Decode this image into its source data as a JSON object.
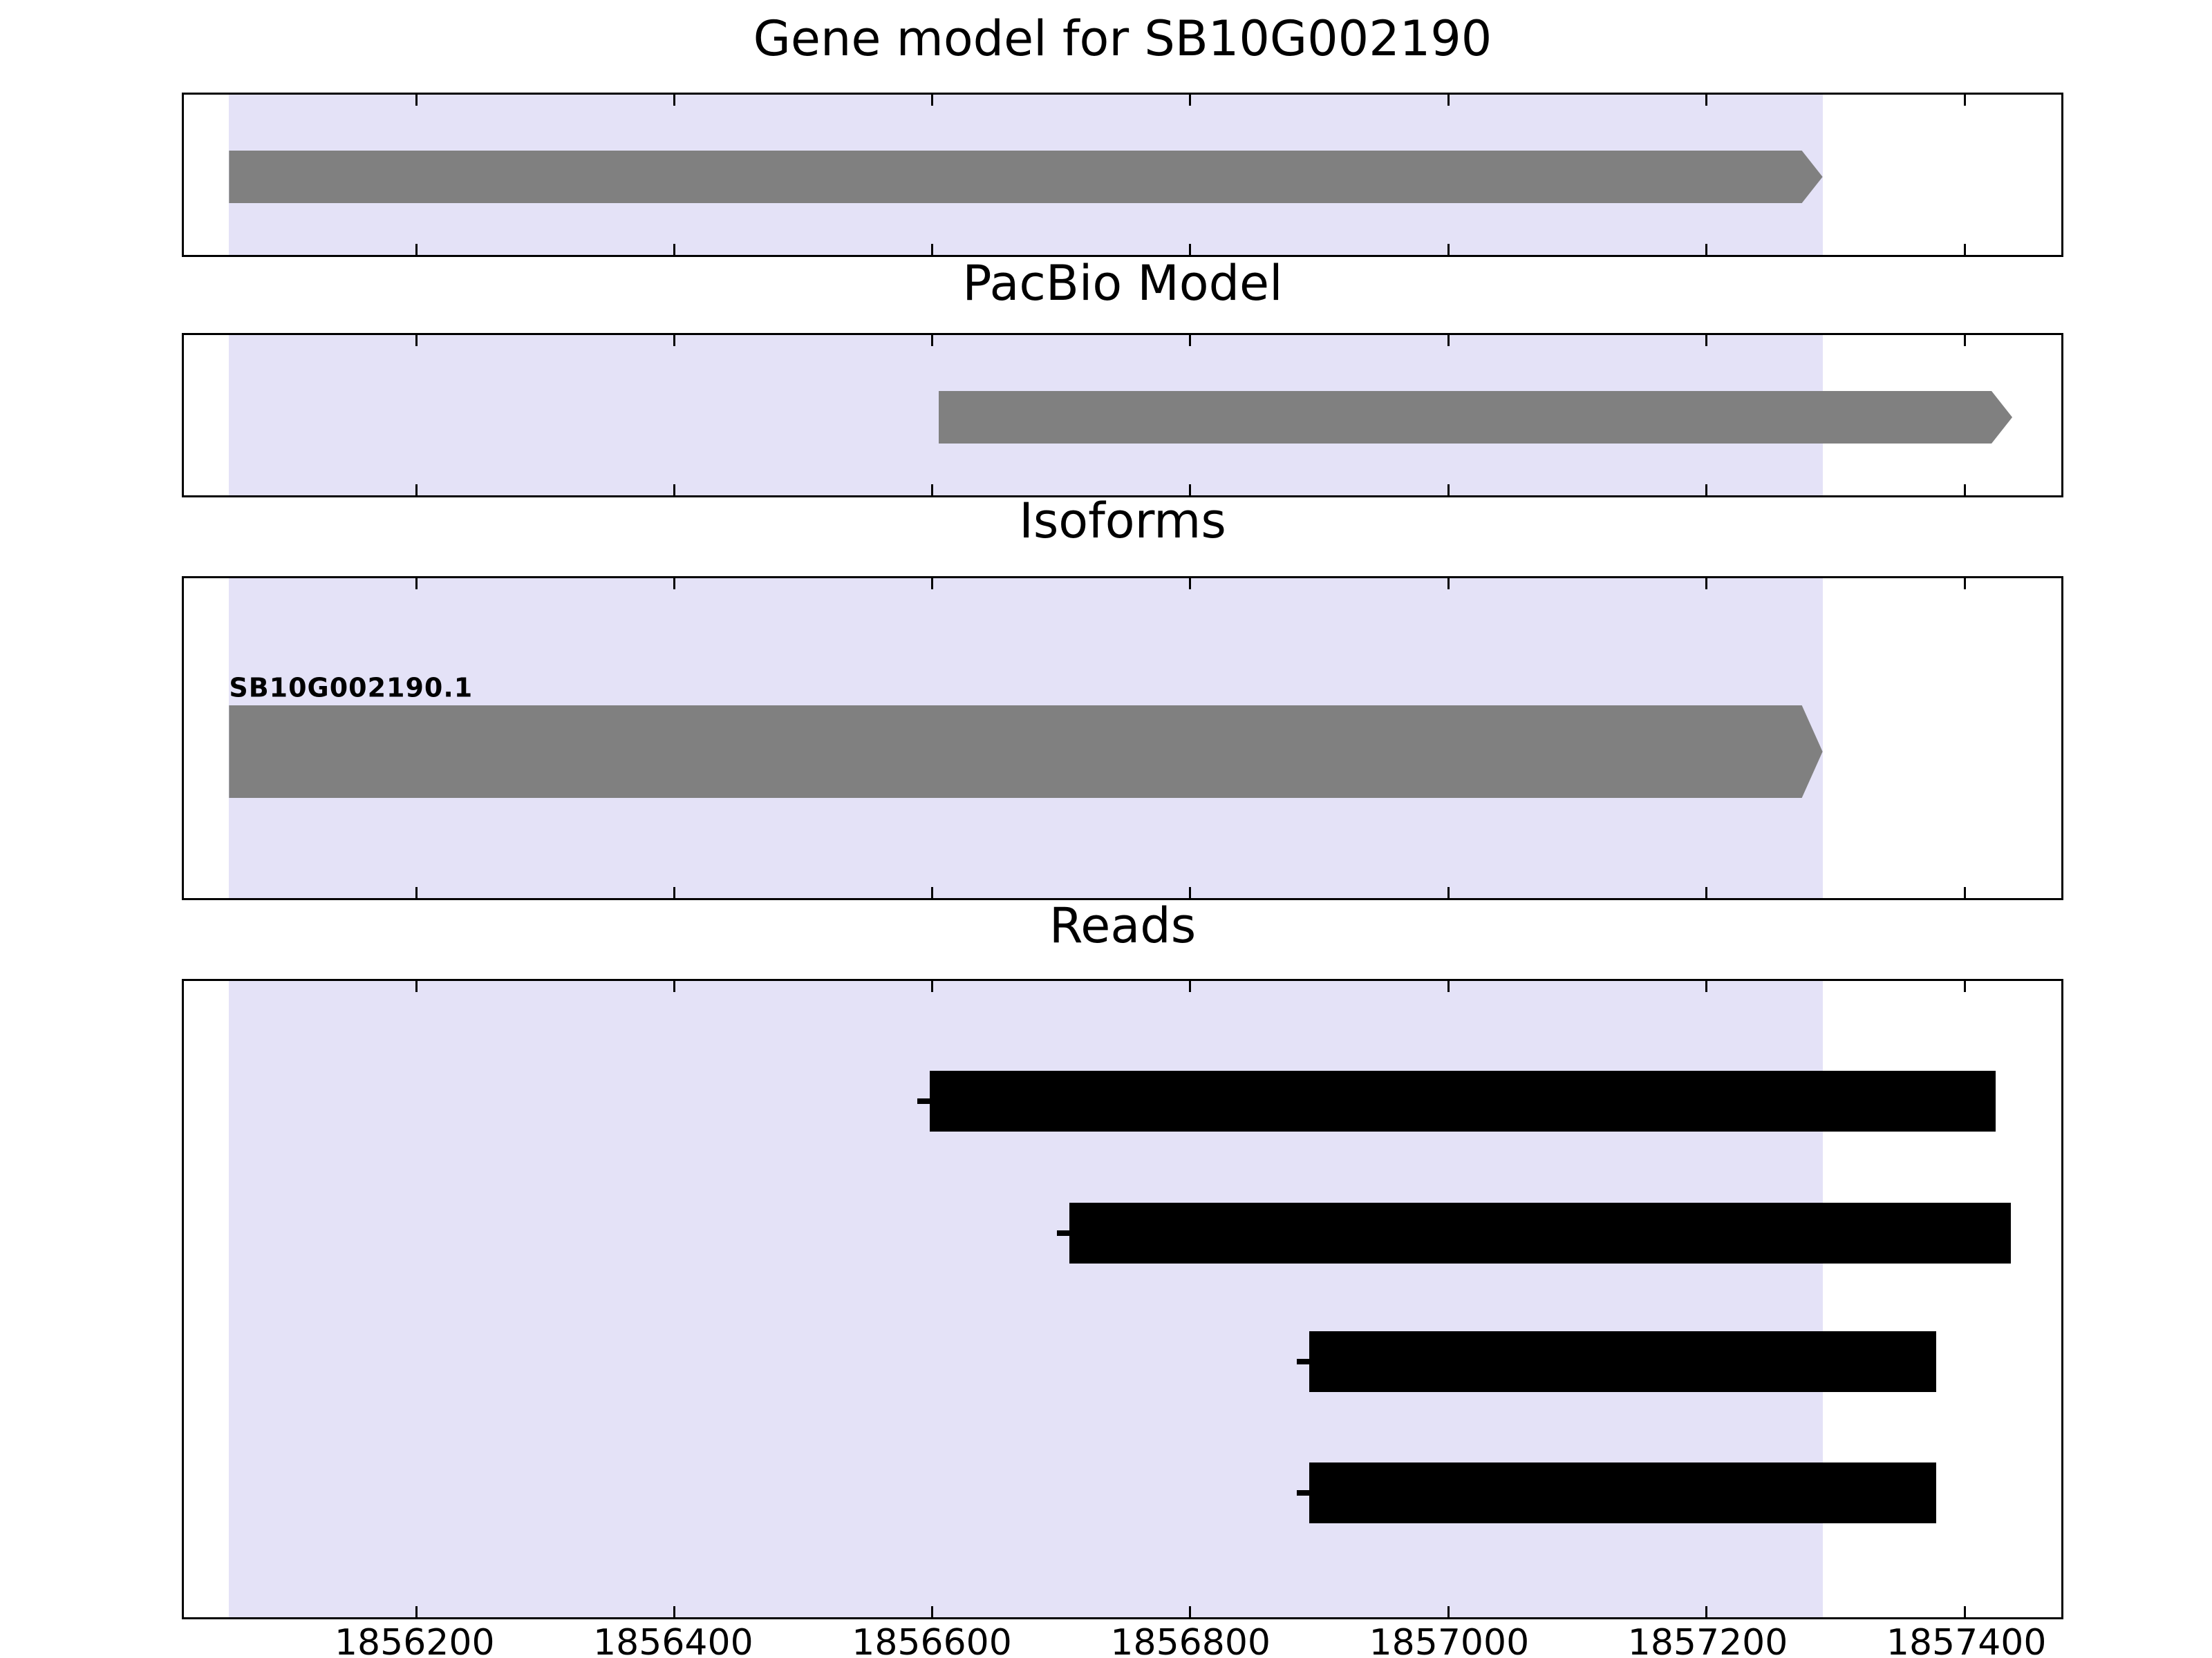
{
  "figure": {
    "background": "#ffffff",
    "text_color": "#000000"
  },
  "chart_data": {
    "type": "bar",
    "title": "Gene model for SB10G002190",
    "xlim": [
      1856020,
      1857475
    ],
    "xticks": [
      1856200,
      1856400,
      1856600,
      1856800,
      1857000,
      1857200,
      1857400
    ],
    "grid": false,
    "legend": false,
    "highlight": {
      "start": 1856055,
      "end": 1857290,
      "color": "#e4e2f7"
    },
    "panels": [
      {
        "title": "Gene model for SB10G002190",
        "track": "gene-model",
        "features": [
          {
            "start": 1856055,
            "end": 1857290,
            "strand": "+",
            "shape": "arrow",
            "color": "#808080"
          }
        ]
      },
      {
        "title": "PacBio Model",
        "track": "pacbio-model",
        "features": [
          {
            "start": 1856605,
            "end": 1857437,
            "strand": "+",
            "shape": "arrow",
            "color": "#808080"
          }
        ]
      },
      {
        "title": "Isoforms",
        "track": "isoforms",
        "features": [
          {
            "label": "SB10G002190.1",
            "start": 1856055,
            "end": 1857290,
            "strand": "+",
            "shape": "arrow",
            "color": "#808080"
          }
        ]
      },
      {
        "title": "Reads",
        "track": "reads",
        "features": [
          {
            "start": 1856598,
            "end": 1857424,
            "shape": "rect",
            "color": "#000000"
          },
          {
            "start": 1856706,
            "end": 1857436,
            "shape": "rect",
            "color": "#000000"
          },
          {
            "start": 1856892,
            "end": 1857378,
            "shape": "rect",
            "color": "#000000"
          },
          {
            "start": 1856892,
            "end": 1857378,
            "shape": "rect",
            "color": "#000000"
          }
        ]
      }
    ]
  }
}
